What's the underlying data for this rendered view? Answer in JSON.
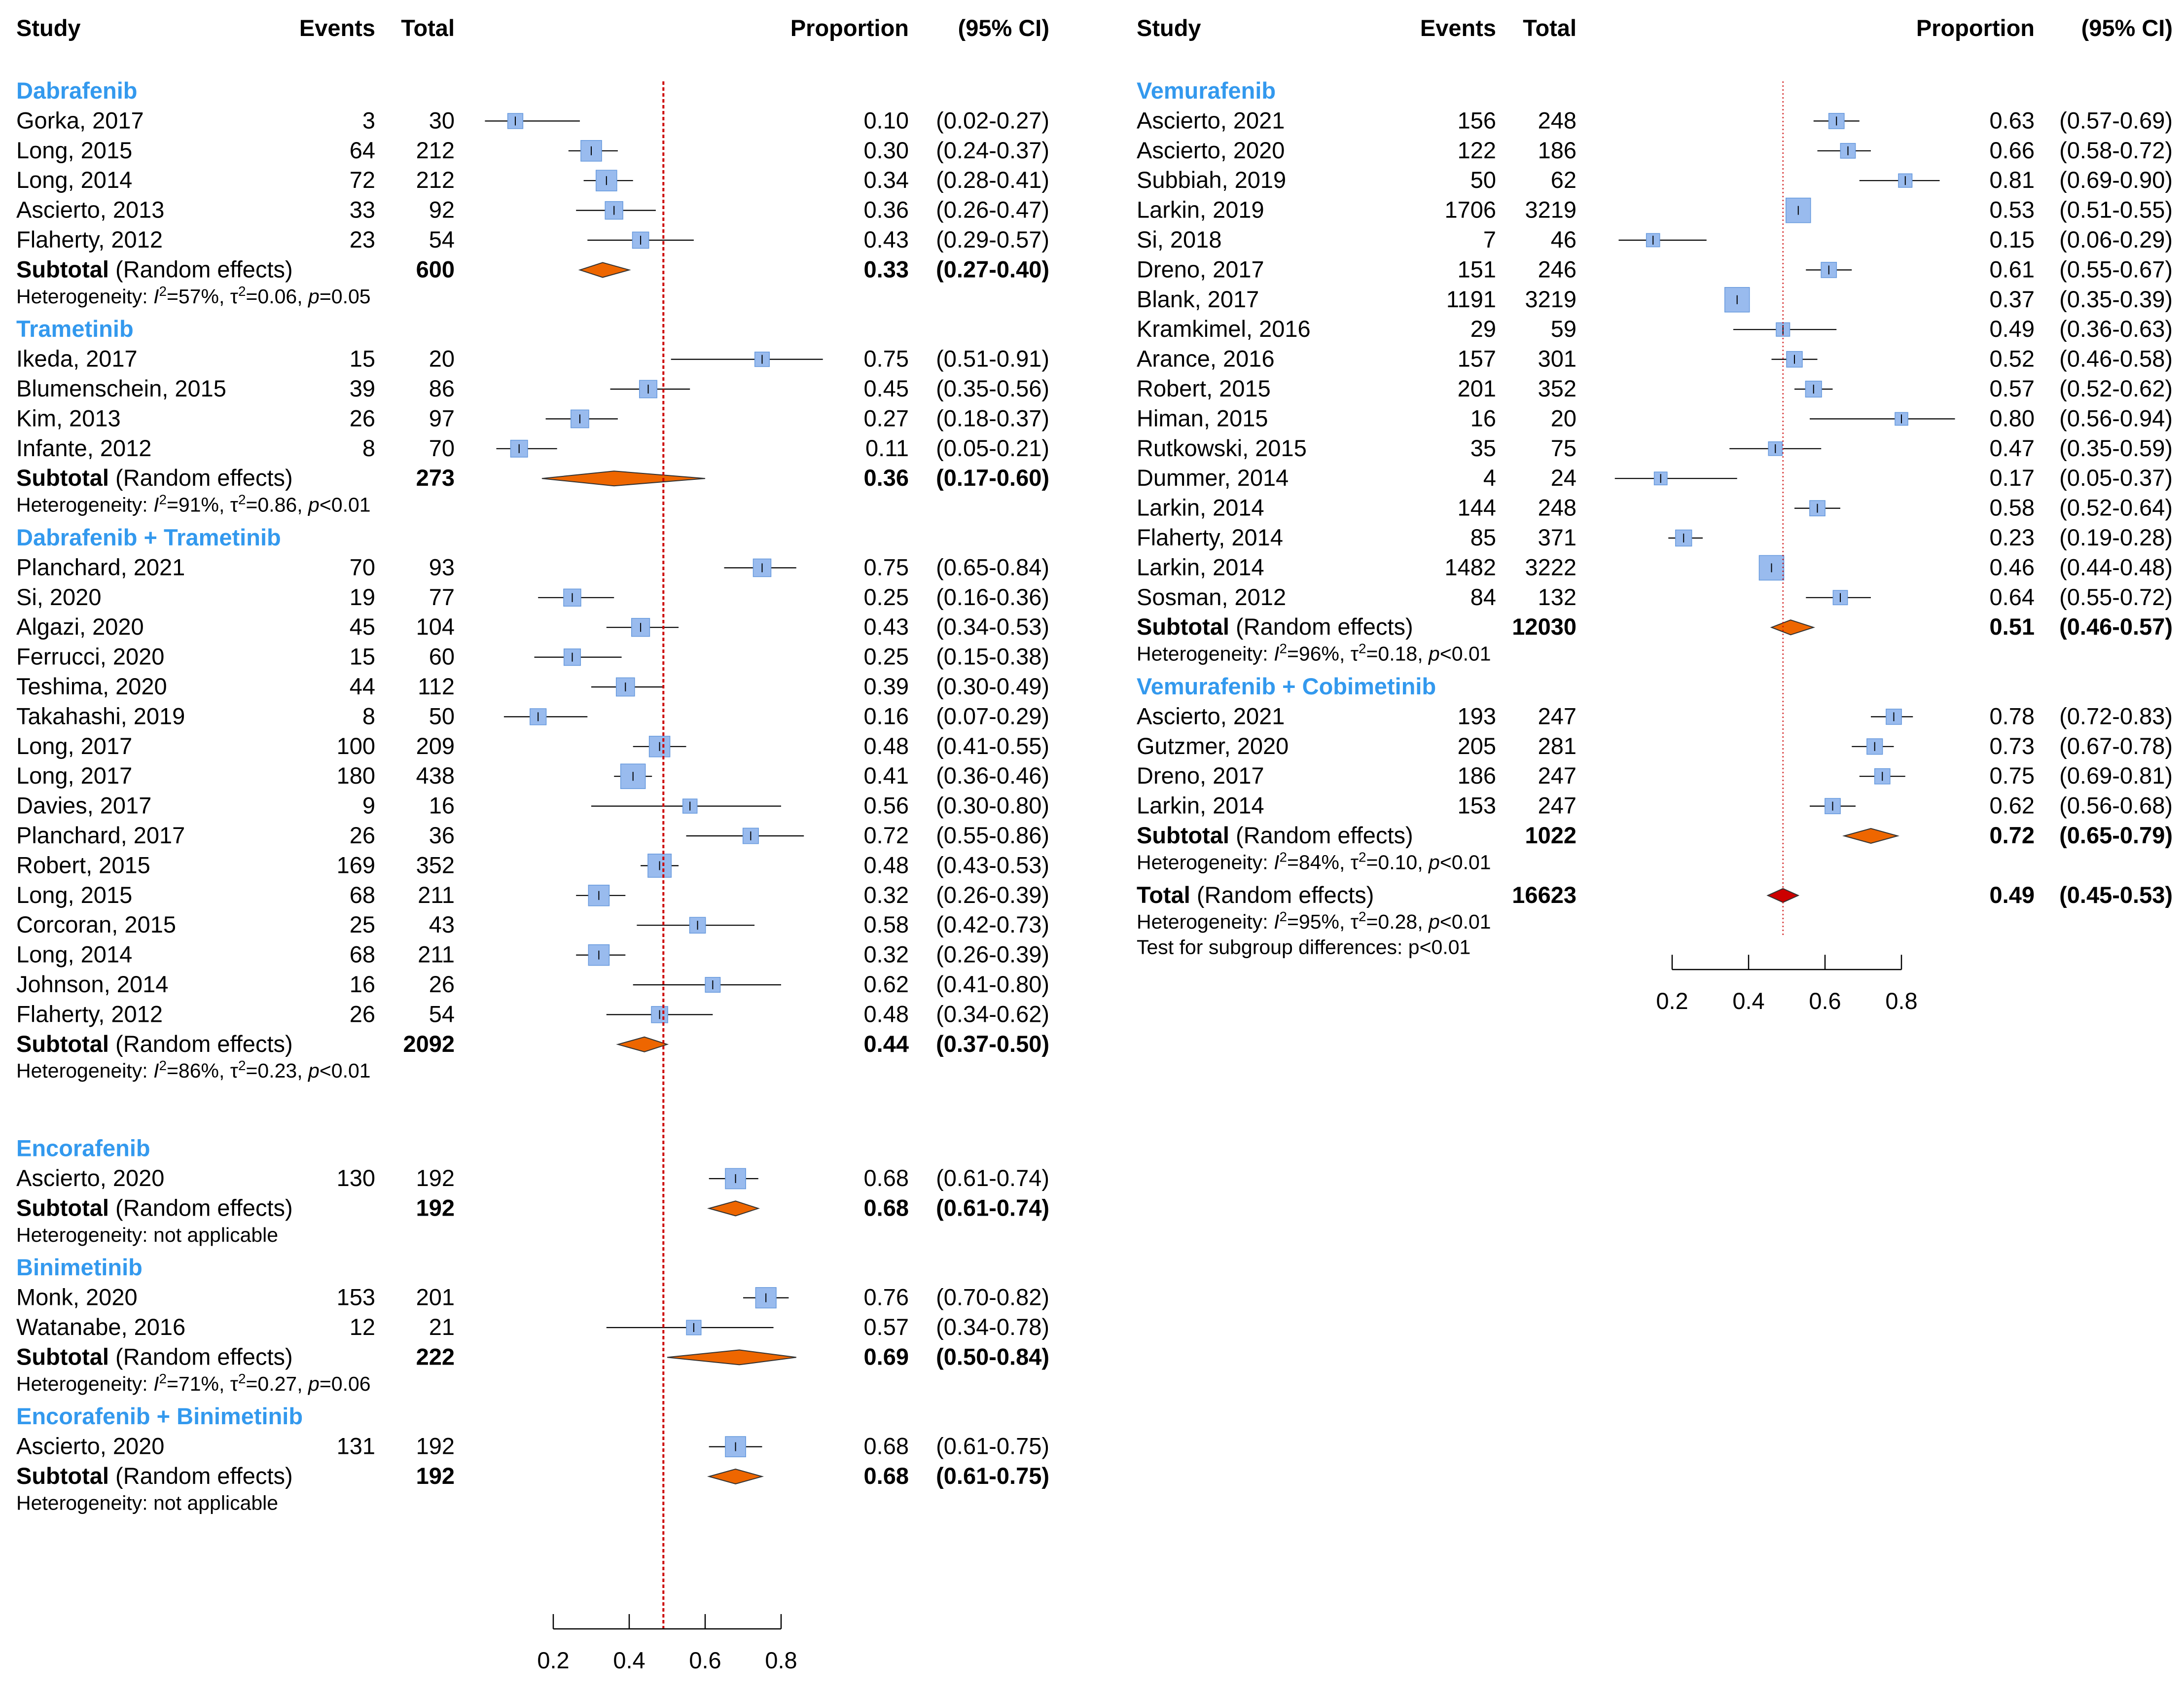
{
  "columns": {
    "study": "Study",
    "events": "Events",
    "total": "Total",
    "proportion": "Proportion",
    "ci": "(95% CI)"
  },
  "subtotal_label": "Subtotal",
  "total_label": "Total",
  "random_effects_label": "(Random effects)",
  "colors": {
    "group_header": "#3399ee",
    "study_box": "#99bbee",
    "study_box_edge": "#6699dd",
    "diamond": "#ee6600",
    "total_diamond": "#cc0000",
    "reference_line": "#cc0000"
  },
  "chart_data": [
    {
      "type": "forest",
      "xlabel": "",
      "x_ticks": [
        0.2,
        0.4,
        0.6,
        0.8
      ],
      "x_tick_labels": [
        "0.2",
        "0.4",
        "0.6",
        "0.8"
      ],
      "reference_line": 0.49,
      "groups": [
        {
          "name": "Dabrafenib",
          "studies": [
            {
              "study": "Gorka, 2017",
              "events": 3,
              "total": 30,
              "proportion": 0.1,
              "lower": 0.02,
              "upper": 0.27
            },
            {
              "study": "Long, 2015",
              "events": 64,
              "total": 212,
              "proportion": 0.3,
              "lower": 0.24,
              "upper": 0.37
            },
            {
              "study": "Long, 2014",
              "events": 72,
              "total": 212,
              "proportion": 0.34,
              "lower": 0.28,
              "upper": 0.41
            },
            {
              "study": "Ascierto, 2013",
              "events": 33,
              "total": 92,
              "proportion": 0.36,
              "lower": 0.26,
              "upper": 0.47
            },
            {
              "study": "Flaherty, 2012",
              "events": 23,
              "total": 54,
              "proportion": 0.43,
              "lower": 0.29,
              "upper": 0.57
            }
          ],
          "subtotal": {
            "total": 600,
            "proportion": 0.33,
            "lower": 0.27,
            "upper": 0.4
          },
          "heterogeneity": {
            "I2": "57%",
            "tau2": "0.06",
            "p": "=0.05"
          }
        },
        {
          "name": "Trametinib",
          "studies": [
            {
              "study": "Ikeda, 2017",
              "events": 15,
              "total": 20,
              "proportion": 0.75,
              "lower": 0.51,
              "upper": 0.91
            },
            {
              "study": "Blumenschein, 2015",
              "events": 39,
              "total": 86,
              "proportion": 0.45,
              "lower": 0.35,
              "upper": 0.56
            },
            {
              "study": "Kim, 2013",
              "events": 26,
              "total": 97,
              "proportion": 0.27,
              "lower": 0.18,
              "upper": 0.37
            },
            {
              "study": "Infante, 2012",
              "events": 8,
              "total": 70,
              "proportion": 0.11,
              "lower": 0.05,
              "upper": 0.21
            }
          ],
          "subtotal": {
            "total": 273,
            "proportion": 0.36,
            "lower": 0.17,
            "upper": 0.6
          },
          "heterogeneity": {
            "I2": "91%",
            "tau2": "0.86",
            "p": "<0.01"
          }
        },
        {
          "name": "Dabrafenib + Trametinib",
          "studies": [
            {
              "study": "Planchard, 2021",
              "events": 70,
              "total": 93,
              "proportion": 0.75,
              "lower": 0.65,
              "upper": 0.84
            },
            {
              "study": "Si, 2020",
              "events": 19,
              "total": 77,
              "proportion": 0.25,
              "lower": 0.16,
              "upper": 0.36
            },
            {
              "study": "Algazi, 2020",
              "events": 45,
              "total": 104,
              "proportion": 0.43,
              "lower": 0.34,
              "upper": 0.53
            },
            {
              "study": "Ferrucci, 2020",
              "events": 15,
              "total": 60,
              "proportion": 0.25,
              "lower": 0.15,
              "upper": 0.38
            },
            {
              "study": "Teshima, 2020",
              "events": 44,
              "total": 112,
              "proportion": 0.39,
              "lower": 0.3,
              "upper": 0.49
            },
            {
              "study": "Takahashi, 2019",
              "events": 8,
              "total": 50,
              "proportion": 0.16,
              "lower": 0.07,
              "upper": 0.29
            },
            {
              "study": "Long, 2017",
              "events": 100,
              "total": 209,
              "proportion": 0.48,
              "lower": 0.41,
              "upper": 0.55
            },
            {
              "study": "Long, 2017",
              "events": 180,
              "total": 438,
              "proportion": 0.41,
              "lower": 0.36,
              "upper": 0.46
            },
            {
              "study": "Davies, 2017",
              "events": 9,
              "total": 16,
              "proportion": 0.56,
              "lower": 0.3,
              "upper": 0.8
            },
            {
              "study": "Planchard, 2017",
              "events": 26,
              "total": 36,
              "proportion": 0.72,
              "lower": 0.55,
              "upper": 0.86
            },
            {
              "study": "Robert, 2015",
              "events": 169,
              "total": 352,
              "proportion": 0.48,
              "lower": 0.43,
              "upper": 0.53
            },
            {
              "study": "Long, 2015",
              "events": 68,
              "total": 211,
              "proportion": 0.32,
              "lower": 0.26,
              "upper": 0.39
            },
            {
              "study": "Corcoran, 2015",
              "events": 25,
              "total": 43,
              "proportion": 0.58,
              "lower": 0.42,
              "upper": 0.73
            },
            {
              "study": "Long, 2014",
              "events": 68,
              "total": 211,
              "proportion": 0.32,
              "lower": 0.26,
              "upper": 0.39
            },
            {
              "study": "Johnson, 2014",
              "events": 16,
              "total": 26,
              "proportion": 0.62,
              "lower": 0.41,
              "upper": 0.8
            },
            {
              "study": "Flaherty, 2012",
              "events": 26,
              "total": 54,
              "proportion": 0.48,
              "lower": 0.34,
              "upper": 0.62
            }
          ],
          "subtotal": {
            "total": 2092,
            "proportion": 0.44,
            "lower": 0.37,
            "upper": 0.5
          },
          "heterogeneity": {
            "I2": "86%",
            "tau2": "0.23",
            "p": "<0.01"
          }
        },
        {
          "name": "Encorafenib",
          "studies": [
            {
              "study": "Ascierto, 2020",
              "events": 130,
              "total": 192,
              "proportion": 0.68,
              "lower": 0.61,
              "upper": 0.74
            }
          ],
          "subtotal": {
            "total": 192,
            "proportion": 0.68,
            "lower": 0.61,
            "upper": 0.74
          },
          "heterogeneity_text": "Heterogeneity: not applicable"
        },
        {
          "name": "Binimetinib",
          "studies": [
            {
              "study": "Monk, 2020",
              "events": 153,
              "total": 201,
              "proportion": 0.76,
              "lower": 0.7,
              "upper": 0.82
            },
            {
              "study": "Watanabe, 2016",
              "events": 12,
              "total": 21,
              "proportion": 0.57,
              "lower": 0.34,
              "upper": 0.78
            }
          ],
          "subtotal": {
            "total": 222,
            "proportion": 0.69,
            "lower": 0.5,
            "upper": 0.84
          },
          "heterogeneity": {
            "I2": "71%",
            "tau2": "0.27",
            "p": "=0.06"
          }
        },
        {
          "name": "Encorafenib + Binimetinib",
          "studies": [
            {
              "study": "Ascierto, 2020",
              "events": 131,
              "total": 192,
              "proportion": 0.68,
              "lower": 0.61,
              "upper": 0.75
            }
          ],
          "subtotal": {
            "total": 192,
            "proportion": 0.68,
            "lower": 0.61,
            "upper": 0.75
          },
          "heterogeneity_text": "Heterogeneity: not applicable"
        }
      ]
    },
    {
      "type": "forest",
      "xlabel": "",
      "x_ticks": [
        0.2,
        0.4,
        0.6,
        0.8
      ],
      "x_tick_labels": [
        "0.2",
        "0.4",
        "0.6",
        "0.8"
      ],
      "reference_line": 0.49,
      "groups": [
        {
          "name": "Vemurafenib",
          "studies": [
            {
              "study": "Ascierto, 2021",
              "events": 156,
              "total": 248,
              "proportion": 0.63,
              "lower": 0.57,
              "upper": 0.69
            },
            {
              "study": "Ascierto, 2020",
              "events": 122,
              "total": 186,
              "proportion": 0.66,
              "lower": 0.58,
              "upper": 0.72
            },
            {
              "study": "Subbiah, 2019",
              "events": 50,
              "total": 62,
              "proportion": 0.81,
              "lower": 0.69,
              "upper": 0.9
            },
            {
              "study": "Larkin, 2019",
              "events": 1706,
              "total": 3219,
              "proportion": 0.53,
              "lower": 0.51,
              "upper": 0.55
            },
            {
              "study": "Si, 2018",
              "events": 7,
              "total": 46,
              "proportion": 0.15,
              "lower": 0.06,
              "upper": 0.29
            },
            {
              "study": "Dreno, 2017",
              "events": 151,
              "total": 246,
              "proportion": 0.61,
              "lower": 0.55,
              "upper": 0.67
            },
            {
              "study": "Blank, 2017",
              "events": 1191,
              "total": 3219,
              "proportion": 0.37,
              "lower": 0.35,
              "upper": 0.39
            },
            {
              "study": "Kramkimel, 2016",
              "events": 29,
              "total": 59,
              "proportion": 0.49,
              "lower": 0.36,
              "upper": 0.63
            },
            {
              "study": "Arance, 2016",
              "events": 157,
              "total": 301,
              "proportion": 0.52,
              "lower": 0.46,
              "upper": 0.58
            },
            {
              "study": "Robert, 2015",
              "events": 201,
              "total": 352,
              "proportion": 0.57,
              "lower": 0.52,
              "upper": 0.62
            },
            {
              "study": "Himan, 2015",
              "events": 16,
              "total": 20,
              "proportion": 0.8,
              "lower": 0.56,
              "upper": 0.94
            },
            {
              "study": "Rutkowski, 2015",
              "events": 35,
              "total": 75,
              "proportion": 0.47,
              "lower": 0.35,
              "upper": 0.59
            },
            {
              "study": "Dummer, 2014",
              "events": 4,
              "total": 24,
              "proportion": 0.17,
              "lower": 0.05,
              "upper": 0.37
            },
            {
              "study": "Larkin, 2014",
              "events": 144,
              "total": 248,
              "proportion": 0.58,
              "lower": 0.52,
              "upper": 0.64
            },
            {
              "study": "Flaherty, 2014",
              "events": 85,
              "total": 371,
              "proportion": 0.23,
              "lower": 0.19,
              "upper": 0.28
            },
            {
              "study": "Larkin, 2014",
              "events": 1482,
              "total": 3222,
              "proportion": 0.46,
              "lower": 0.44,
              "upper": 0.48
            },
            {
              "study": "Sosman, 2012",
              "events": 84,
              "total": 132,
              "proportion": 0.64,
              "lower": 0.55,
              "upper": 0.72
            }
          ],
          "subtotal": {
            "total": 12030,
            "proportion": 0.51,
            "lower": 0.46,
            "upper": 0.57
          },
          "heterogeneity": {
            "I2": "96%",
            "tau2": "0.18",
            "p": "<0.01"
          }
        },
        {
          "name": "Vemurafenib + Cobimetinib",
          "studies": [
            {
              "study": "Ascierto, 2021",
              "events": 193,
              "total": 247,
              "proportion": 0.78,
              "lower": 0.72,
              "upper": 0.83
            },
            {
              "study": "Gutzmer, 2020",
              "events": 205,
              "total": 281,
              "proportion": 0.73,
              "lower": 0.67,
              "upper": 0.78
            },
            {
              "study": "Dreno, 2017",
              "events": 186,
              "total": 247,
              "proportion": 0.75,
              "lower": 0.69,
              "upper": 0.81
            },
            {
              "study": "Larkin, 2014",
              "events": 153,
              "total": 247,
              "proportion": 0.62,
              "lower": 0.56,
              "upper": 0.68
            }
          ],
          "subtotal": {
            "total": 1022,
            "proportion": 0.72,
            "lower": 0.65,
            "upper": 0.79
          },
          "heterogeneity": {
            "I2": "84%",
            "tau2": "0.10",
            "p": "<0.01"
          }
        }
      ],
      "overall": {
        "total": 16623,
        "proportion": 0.49,
        "lower": 0.45,
        "upper": 0.53,
        "heterogeneity": {
          "I2": "95%",
          "tau2": "0.28",
          "p": "<0.01"
        },
        "subgroup_test": "Test for subgroup differences: p<0.01"
      }
    }
  ]
}
